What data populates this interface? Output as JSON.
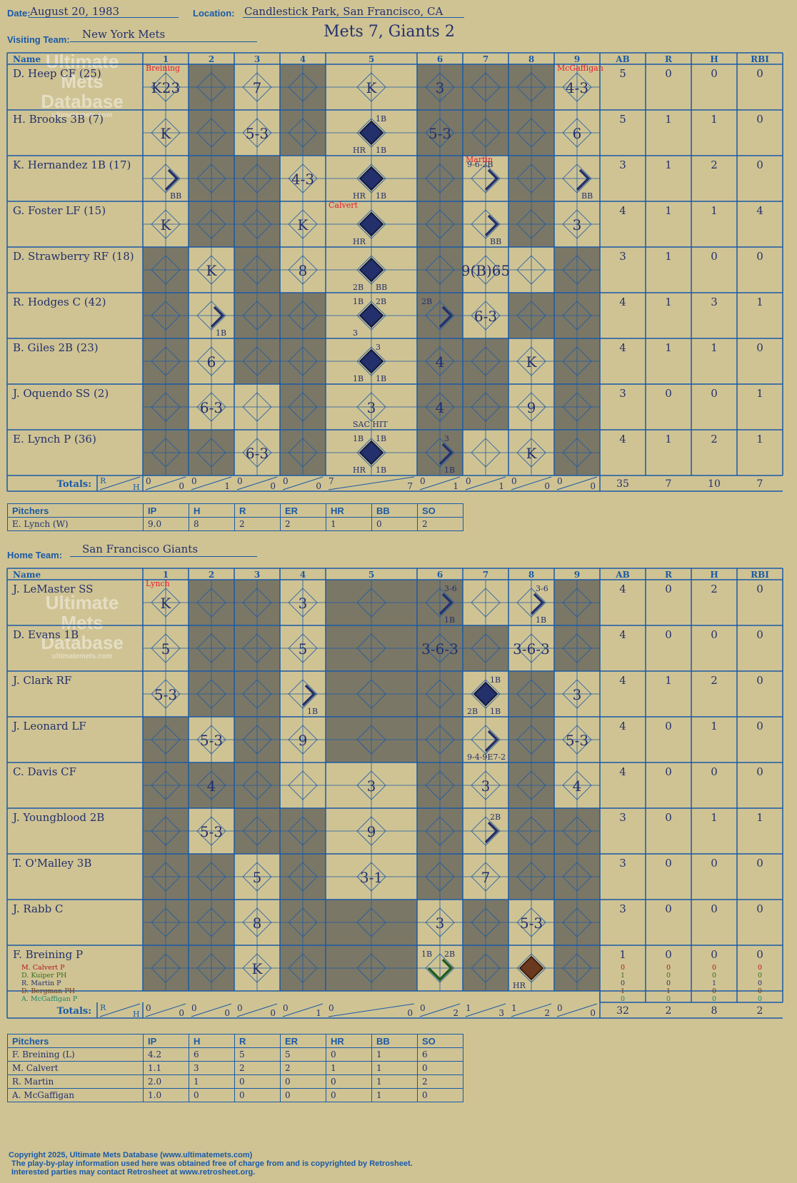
{
  "header": {
    "date_label": "Date:",
    "date": "August 20, 1983",
    "location_label": "Location:",
    "location": "Candlestick Park, San Francisco, CA",
    "visiting_label": "Visiting Team:",
    "visiting_team": "New York Mets",
    "home_label": "Home Team:",
    "home_team": "San Francisco Giants",
    "title": "Mets 7, Giants 2"
  },
  "watermark": {
    "line1": "Ultimate",
    "line2": "Mets",
    "line3": "Database",
    "url": "ultimatemets.com"
  },
  "grid_headers": {
    "name": "Name",
    "innings": [
      "1",
      "2",
      "3",
      "4",
      "5",
      "6",
      "7",
      "8",
      "9"
    ],
    "stats": [
      "AB",
      "R",
      "H",
      "RBI"
    ],
    "totals": "Totals:",
    "r": "R",
    "h": "H"
  },
  "colors": {
    "bg": "#cfc394",
    "line": "#1a5aa6",
    "ink": "#23306b",
    "shade": "#7b7766",
    "sub": "#e8192c"
  },
  "visitors": {
    "shaded": [
      [
        2,
        4,
        6,
        7,
        8
      ],
      [
        2,
        4,
        6,
        7,
        8
      ],
      [
        2,
        3,
        6,
        8
      ],
      [
        2,
        3,
        6,
        8
      ],
      [
        1,
        3,
        6,
        9
      ],
      [
        1,
        3,
        4,
        6,
        8,
        9
      ],
      [
        1,
        3,
        4,
        6,
        7,
        9
      ],
      [
        1,
        4,
        6,
        7,
        9
      ],
      [
        1,
        2,
        4,
        6,
        9
      ]
    ],
    "rows": [
      {
        "name": "D. Heep CF (25)",
        "ab": "5",
        "r": "0",
        "h": "0",
        "rbi": "0",
        "cells": [
          [
            1,
            "K23"
          ],
          [
            3,
            "7"
          ],
          [
            5,
            "K"
          ],
          [
            6,
            "3"
          ],
          [
            9,
            "4-3"
          ]
        ]
      },
      {
        "name": "H. Brooks 3B (7)",
        "ab": "5",
        "r": "1",
        "h": "1",
        "rbi": "0",
        "cells": [
          [
            1,
            "K"
          ],
          [
            3,
            "5-3"
          ],
          [
            6,
            "5-3"
          ],
          [
            9,
            "6"
          ]
        ]
      },
      {
        "name": "K. Hernandez 1B (17)",
        "ab": "3",
        "r": "1",
        "h": "2",
        "rbi": "0",
        "cells": [
          [
            4,
            "4-3"
          ]
        ]
      },
      {
        "name": "G. Foster LF (15)",
        "ab": "4",
        "r": "1",
        "h": "1",
        "rbi": "4",
        "cells": [
          [
            1,
            "K"
          ],
          [
            4,
            "K"
          ],
          [
            9,
            "3"
          ]
        ]
      },
      {
        "name": "D. Strawberry RF (18)",
        "ab": "3",
        "r": "1",
        "h": "0",
        "rbi": "0",
        "cells": [
          [
            2,
            "K"
          ],
          [
            4,
            "8"
          ],
          [
            7,
            "9(B)65"
          ]
        ]
      },
      {
        "name": "R. Hodges C (42)",
        "ab": "4",
        "r": "1",
        "h": "3",
        "rbi": "1",
        "cells": [
          [
            7,
            "6-3"
          ]
        ]
      },
      {
        "name": "B. Giles 2B (23)",
        "ab": "4",
        "r": "1",
        "h": "1",
        "rbi": "0",
        "cells": [
          [
            2,
            "6"
          ],
          [
            6,
            "4"
          ],
          [
            8,
            "K"
          ]
        ]
      },
      {
        "name": "J. Oquendo SS (2)",
        "ab": "3",
        "r": "0",
        "h": "0",
        "rbi": "1",
        "cells": [
          [
            2,
            "6-3"
          ],
          [
            5,
            "3"
          ],
          [
            6,
            "4"
          ],
          [
            8,
            "9"
          ]
        ]
      },
      {
        "name": "E. Lynch P (36)",
        "ab": "4",
        "r": "1",
        "h": "2",
        "rbi": "1",
        "cells": [
          [
            3,
            "6-3"
          ],
          [
            8,
            "K"
          ]
        ]
      }
    ],
    "runs": [
      {
        "row": 1,
        "inn": 5
      },
      {
        "row": 2,
        "inn": 5
      },
      {
        "row": 3,
        "inn": 5
      },
      {
        "row": 4,
        "inn": 5
      },
      {
        "row": 5,
        "inn": 5
      },
      {
        "row": 6,
        "inn": 5
      },
      {
        "row": 8,
        "inn": 5
      }
    ],
    "partials": [
      {
        "row": 2,
        "inn": 1
      },
      {
        "row": 2,
        "inn": 9
      },
      {
        "row": 2,
        "inn": 7
      },
      {
        "row": 3,
        "inn": 7
      },
      {
        "row": 5,
        "inn": 2
      },
      {
        "row": 5,
        "inn": 6
      },
      {
        "row": 8,
        "inn": 6
      }
    ],
    "small": [
      {
        "row": 1,
        "inn": 5,
        "t": "1B",
        "pos": "tr"
      },
      {
        "row": 1,
        "inn": 5,
        "t": "HR",
        "pos": "bl"
      },
      {
        "row": 1,
        "inn": 5,
        "t": "1B",
        "pos": "br"
      },
      {
        "row": 2,
        "inn": 1,
        "t": "BB",
        "pos": "br"
      },
      {
        "row": 2,
        "inn": 9,
        "t": "BB",
        "pos": "br"
      },
      {
        "row": 2,
        "inn": 5,
        "t": "HR",
        "pos": "bl"
      },
      {
        "row": 2,
        "inn": 5,
        "t": "1B",
        "pos": "br"
      },
      {
        "row": 2,
        "inn": 7,
        "t": "9-6-2B",
        "pos": "tl"
      },
      {
        "row": 3,
        "inn": 5,
        "t": "HR",
        "pos": "bl"
      },
      {
        "row": 3,
        "inn": 7,
        "t": "BB",
        "pos": "br"
      },
      {
        "row": 4,
        "inn": 5,
        "t": "2B",
        "pos": "bl"
      },
      {
        "row": 4,
        "inn": 5,
        "t": "BB",
        "pos": "br"
      },
      {
        "row": 5,
        "inn": 5,
        "t": "1B",
        "pos": "tl"
      },
      {
        "row": 5,
        "inn": 5,
        "t": "2B",
        "pos": "tr"
      },
      {
        "row": 5,
        "inn": 5,
        "t": "3",
        "pos": "bl"
      },
      {
        "row": 5,
        "inn": 2,
        "t": "1B",
        "pos": "br"
      },
      {
        "row": 5,
        "inn": 6,
        "t": "2B",
        "pos": "tl"
      },
      {
        "row": 6,
        "inn": 5,
        "t": "3",
        "pos": "tr"
      },
      {
        "row": 6,
        "inn": 5,
        "t": "1B",
        "pos": "bl"
      },
      {
        "row": 6,
        "inn": 5,
        "t": "1B",
        "pos": "br"
      },
      {
        "row": 7,
        "inn": 5,
        "t": "SAC HIT",
        "pos": "bl"
      },
      {
        "row": 8,
        "inn": 5,
        "t": "1B",
        "pos": "tl"
      },
      {
        "row": 8,
        "inn": 5,
        "t": "1B",
        "pos": "tr"
      },
      {
        "row": 8,
        "inn": 5,
        "t": "HR",
        "pos": "bl"
      },
      {
        "row": 8,
        "inn": 5,
        "t": "1B",
        "pos": "br"
      },
      {
        "row": 8,
        "inn": 6,
        "t": "3",
        "pos": "tr"
      },
      {
        "row": 8,
        "inn": 6,
        "t": "1B",
        "pos": "br"
      }
    ],
    "subs": [
      {
        "row": 0,
        "inn": 1,
        "t": "Breining"
      },
      {
        "row": 0,
        "inn": 9,
        "t": "McGaffigan"
      },
      {
        "row": 2,
        "inn": 7,
        "t": "Martin"
      },
      {
        "row": 3,
        "inn": 5,
        "t": "Calvert"
      }
    ],
    "totals": {
      "innings": [
        [
          "0",
          "0"
        ],
        [
          "0",
          "1"
        ],
        [
          "0",
          "0"
        ],
        [
          "0",
          "0"
        ],
        [
          "7",
          "7"
        ],
        [
          "0",
          "1"
        ],
        [
          "0",
          "1"
        ],
        [
          "0",
          "0"
        ],
        [
          "0",
          "0"
        ]
      ],
      "ab": "35",
      "r": "7",
      "h": "10",
      "rbi": "7"
    }
  },
  "home": {
    "shaded": [
      [
        2,
        3,
        5,
        6,
        9
      ],
      [
        2,
        3,
        5,
        6,
        7,
        9
      ],
      [
        2,
        3,
        5,
        6,
        8
      ],
      [
        1,
        3,
        5,
        6,
        8
      ],
      [
        1,
        2,
        3,
        6,
        8
      ],
      [
        1,
        3,
        4,
        6,
        8,
        9
      ],
      [
        1,
        2,
        4,
        6,
        8,
        9
      ],
      [
        1,
        2,
        4,
        5,
        7,
        9
      ],
      [
        1,
        2,
        4,
        5,
        7,
        9
      ]
    ],
    "rows": [
      {
        "name": "J. LeMaster SS",
        "ab": "4",
        "r": "0",
        "h": "2",
        "rbi": "0",
        "cells": [
          [
            1,
            "K"
          ],
          [
            4,
            "3"
          ]
        ]
      },
      {
        "name": "D. Evans 1B",
        "ab": "4",
        "r": "0",
        "h": "0",
        "rbi": "0",
        "cells": [
          [
            1,
            "5"
          ],
          [
            4,
            "5"
          ],
          [
            6,
            "3-6-3"
          ],
          [
            8,
            "3-6-3"
          ]
        ]
      },
      {
        "name": "J. Clark RF",
        "ab": "4",
        "r": "1",
        "h": "2",
        "rbi": "0",
        "cells": [
          [
            1,
            "5-3"
          ],
          [
            9,
            "3"
          ]
        ]
      },
      {
        "name": "J. Leonard LF",
        "ab": "4",
        "r": "0",
        "h": "1",
        "rbi": "0",
        "cells": [
          [
            2,
            "5-3"
          ],
          [
            4,
            "9"
          ],
          [
            9,
            "5-3"
          ]
        ]
      },
      {
        "name": "C. Davis CF",
        "ab": "4",
        "r": "0",
        "h": "0",
        "rbi": "0",
        "cells": [
          [
            2,
            "4"
          ],
          [
            5,
            "3"
          ],
          [
            7,
            "3"
          ],
          [
            9,
            "4"
          ]
        ]
      },
      {
        "name": "J. Youngblood 2B",
        "ab": "3",
        "r": "0",
        "h": "1",
        "rbi": "1",
        "cells": [
          [
            2,
            "5-3"
          ],
          [
            5,
            "9"
          ]
        ]
      },
      {
        "name": "T. O'Malley 3B",
        "ab": "3",
        "r": "0",
        "h": "0",
        "rbi": "0",
        "cells": [
          [
            3,
            "5"
          ],
          [
            5,
            "3-1"
          ],
          [
            7,
            "7"
          ]
        ]
      },
      {
        "name": "J. Rabb C",
        "ab": "3",
        "r": "0",
        "h": "0",
        "rbi": "0",
        "cells": [
          [
            3,
            "8"
          ],
          [
            6,
            "3"
          ],
          [
            8,
            "5-3"
          ]
        ]
      },
      {
        "name": "F. Breining P",
        "ab": "1",
        "r": "0",
        "h": "0",
        "rbi": "0",
        "cells": [
          [
            3,
            "K"
          ]
        ]
      }
    ],
    "runs": [
      {
        "row": 2,
        "inn": 7
      }
    ],
    "partials": [
      {
        "row": 0,
        "inn": 6
      },
      {
        "row": 0,
        "inn": 8
      },
      {
        "row": 2,
        "inn": 4
      },
      {
        "row": 3,
        "inn": 7
      },
      {
        "row": 5,
        "inn": 7
      }
    ],
    "small": [
      {
        "row": 0,
        "inn": 6,
        "t": "3-6",
        "pos": "tr"
      },
      {
        "row": 0,
        "inn": 6,
        "t": "1B",
        "pos": "br"
      },
      {
        "row": 0,
        "inn": 8,
        "t": "3-6",
        "pos": "tr"
      },
      {
        "row": 0,
        "inn": 8,
        "t": "1B",
        "pos": "br"
      },
      {
        "row": 2,
        "inn": 4,
        "t": "1B",
        "pos": "br"
      },
      {
        "row": 2,
        "inn": 7,
        "t": "1B",
        "pos": "tr"
      },
      {
        "row": 2,
        "inn": 7,
        "t": "2B",
        "pos": "bl"
      },
      {
        "row": 2,
        "inn": 7,
        "t": "1B",
        "pos": "br"
      },
      {
        "row": 3,
        "inn": 7,
        "t": "9-4-9E7-2",
        "pos": "bl"
      },
      {
        "row": 5,
        "inn": 7,
        "t": "2B",
        "pos": "tr"
      },
      {
        "row": 8,
        "inn": 6,
        "t": "1B",
        "pos": "tl"
      },
      {
        "row": 8,
        "inn": 6,
        "t": "2B",
        "pos": "tr"
      },
      {
        "row": 8,
        "inn": 8,
        "t": "HR",
        "pos": "bl"
      }
    ],
    "subs": [
      {
        "row": 0,
        "inn": 1,
        "t": "Lynch"
      }
    ],
    "green_partial": {
      "row": 8,
      "inn": 6
    },
    "brown_run": {
      "row": 8,
      "inn": 8
    },
    "pinch": [
      {
        "t": "M. Calvert P",
        "c": "#b5161d",
        "stats": [
          "0",
          "0",
          "0",
          "0"
        ]
      },
      {
        "t": "D. Kuiper PH",
        "c": "#3a6b1e",
        "stats": [
          "1",
          "0",
          "0",
          "0"
        ]
      },
      {
        "t": "R. Martin P",
        "c": "#23306b",
        "stats": [
          "0",
          "0",
          "1",
          "0"
        ]
      },
      {
        "t": "D. Bergman PH",
        "c": "#6b3a1e",
        "stats": [
          "1",
          "1",
          "0",
          "0"
        ]
      },
      {
        "t": "A. McGaffigan P",
        "c": "#1e8a66",
        "stats": [
          "0",
          "0",
          "0",
          "0"
        ]
      }
    ],
    "totals": {
      "innings": [
        [
          "0",
          "0"
        ],
        [
          "0",
          "0"
        ],
        [
          "0",
          "0"
        ],
        [
          "0",
          "1"
        ],
        [
          "0",
          "0"
        ],
        [
          "0",
          "2"
        ],
        [
          "1",
          "3"
        ],
        [
          "1",
          "2"
        ],
        [
          "0",
          "0"
        ]
      ],
      "ab": "32",
      "r": "2",
      "h": "8",
      "rbi": "2"
    }
  },
  "pitch_headers": [
    "Pitchers",
    "IP",
    "H",
    "R",
    "ER",
    "HR",
    "BB",
    "SO"
  ],
  "mets_pitchers": [
    [
      "E. Lynch (W)",
      "9.0",
      "8",
      "2",
      "2",
      "1",
      "0",
      "2"
    ]
  ],
  "giants_pitchers": [
    [
      "F. Breining (L)",
      "4.2",
      "6",
      "5",
      "5",
      "0",
      "1",
      "6"
    ],
    [
      "M. Calvert",
      "1.1",
      "3",
      "2",
      "2",
      "1",
      "1",
      "0"
    ],
    [
      "R. Martin",
      "2.0",
      "1",
      "0",
      "0",
      "0",
      "1",
      "2"
    ],
    [
      "A. McGaffigan",
      "1.0",
      "0",
      "0",
      "0",
      "0",
      "1",
      "0"
    ]
  ],
  "footer": {
    "l1": "Copyright 2025, Ultimate Mets Database (www.ultimatemets.com)",
    "l2": "The play-by-play information used here was obtained free of charge from and is copyrighted by Retrosheet.",
    "l3": "Interested parties may contact Retrosheet at www.retrosheet.org."
  }
}
